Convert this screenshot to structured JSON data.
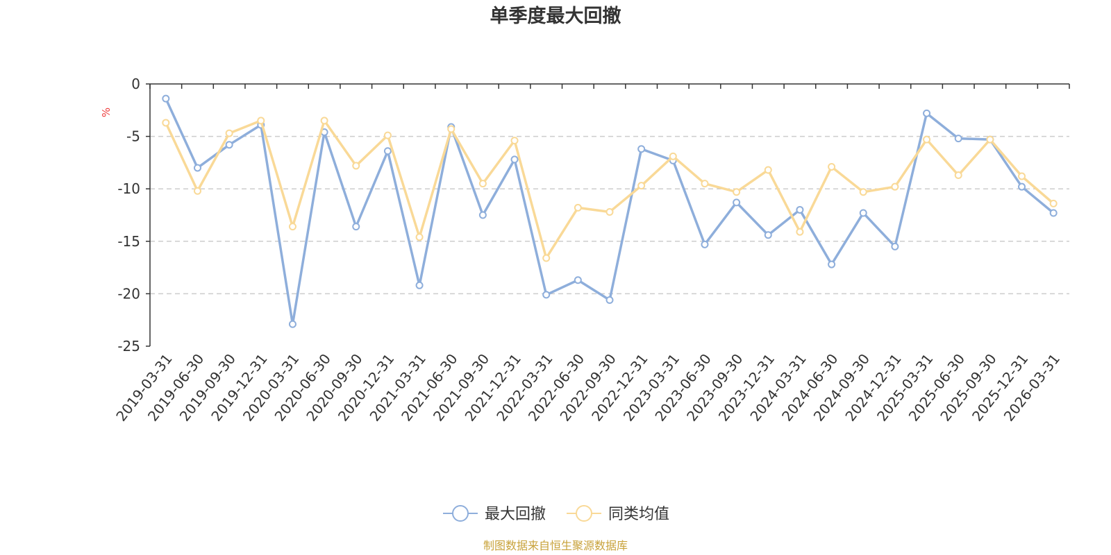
{
  "chart_data": {
    "type": "line",
    "title": "单季度最大回撤",
    "ylabel": "%",
    "ylim": [
      -25,
      0
    ],
    "yticks": [
      0,
      -5,
      -10,
      -15,
      -20,
      -25
    ],
    "grid": true,
    "legend_position": "bottom-center",
    "categories": [
      "2019-03-31",
      "2019-06-30",
      "2019-09-30",
      "2019-12-31",
      "2020-03-31",
      "2020-06-30",
      "2020-09-30",
      "2020-12-31",
      "2021-03-31",
      "2021-06-30",
      "2021-09-30",
      "2021-12-31",
      "2022-03-31",
      "2022-06-30",
      "2022-09-30",
      "2022-12-31",
      "2023-03-31",
      "2023-06-30",
      "2023-09-30",
      "2023-12-31",
      "2024-03-31",
      "2024-06-30",
      "2024-09-30",
      "2024-12-31",
      "2025-03-31",
      "2025-06-30",
      "2025-09-30",
      "2025-12-31",
      "2026-03-31"
    ],
    "series": [
      {
        "name": "最大回撤",
        "color": "#8eaedb",
        "values": [
          -1.4,
          -8.0,
          -5.8,
          -3.9,
          -22.9,
          -4.6,
          -13.6,
          -6.4,
          -19.2,
          -4.1,
          -12.5,
          -7.2,
          -20.1,
          -18.7,
          -20.6,
          -6.2,
          -7.3,
          -15.3,
          -11.3,
          -14.4,
          -12.0,
          -17.2,
          -12.3,
          -15.5,
          -2.8,
          -5.2,
          -5.3,
          -9.8,
          -12.3
        ]
      },
      {
        "name": "同类均值",
        "color": "#f9d997",
        "values": [
          -3.7,
          -10.2,
          -4.7,
          -3.5,
          -13.6,
          -3.5,
          -7.8,
          -4.9,
          -14.6,
          -4.3,
          -9.5,
          -5.4,
          -16.6,
          -11.8,
          -12.2,
          -9.7,
          -6.9,
          -9.5,
          -10.3,
          -8.2,
          -14.1,
          -7.9,
          -10.3,
          -9.8,
          -5.3,
          -8.7,
          -5.3,
          -8.8,
          -11.4
        ]
      }
    ]
  },
  "source_note": "制图数据来自恒生聚源数据库",
  "source_color": "#c8a23a",
  "unit_color": "#ee3b3b"
}
